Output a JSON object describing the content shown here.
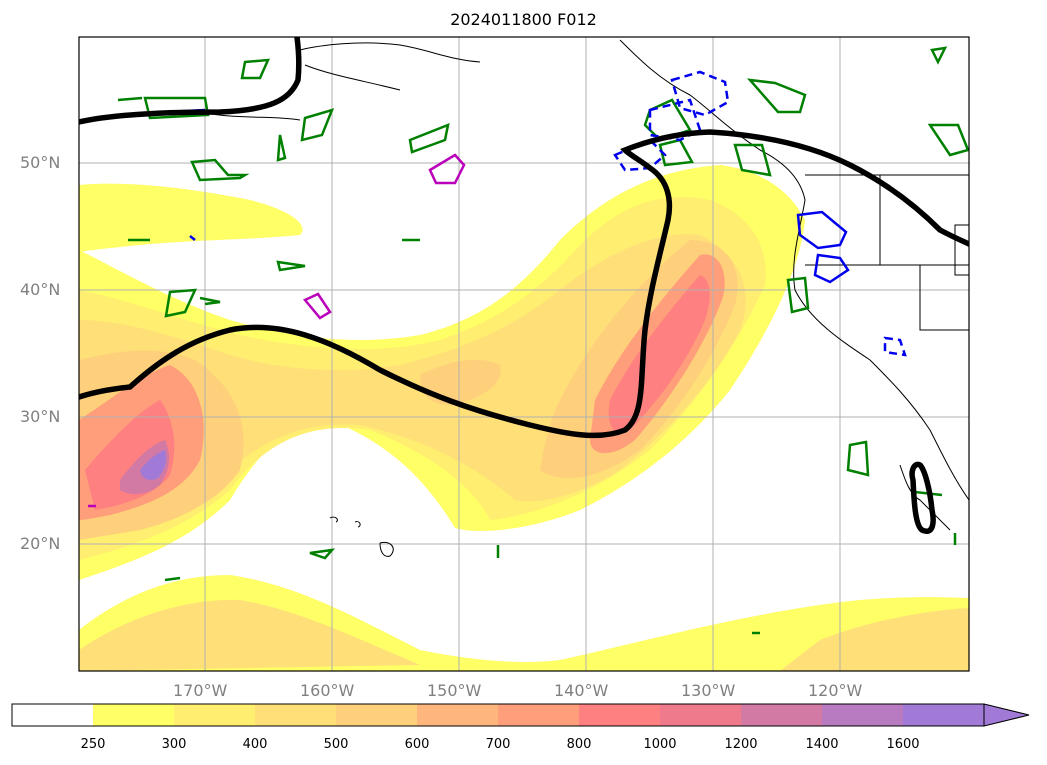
{
  "title": "2024011800 F012",
  "map": {
    "lat_labels": [
      "50°N",
      "40°N",
      "30°N",
      "20°N"
    ],
    "lon_labels": [
      "170°W",
      "160°W",
      "150°W",
      "140°W",
      "130°W",
      "120°W"
    ]
  },
  "colorbar": {
    "ticks": [
      "250",
      "300",
      "400",
      "500",
      "600",
      "700",
      "800",
      "1000",
      "1200",
      "1400",
      "1600"
    ],
    "colors": [
      "#ffffff",
      "#ffff66",
      "#ffee70",
      "#ffdf78",
      "#ffd07c",
      "#ffb67c",
      "#ff9e7a",
      "#ff8080",
      "#ee7a8c",
      "#d27aa4",
      "#b87ac0",
      "#a07ad6"
    ],
    "extend": "max"
  },
  "contour_colors": {
    "thick_line": "#000000",
    "green": "#008000",
    "blue": "#0000ee",
    "magenta": "#bb00bb"
  }
}
